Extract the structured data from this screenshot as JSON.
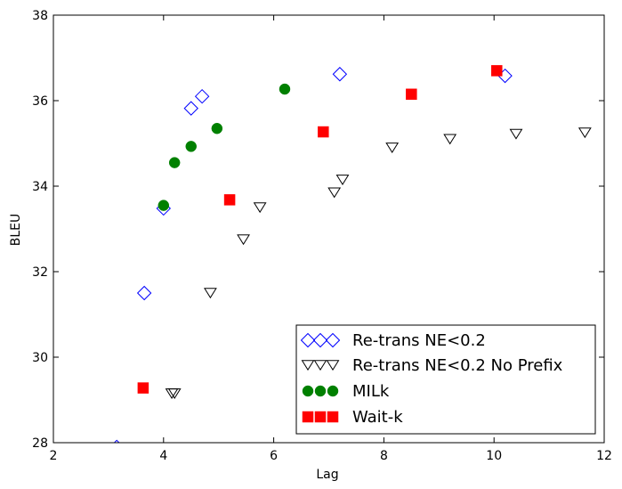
{
  "chart_data": {
    "type": "scatter",
    "xlabel": "Lag",
    "ylabel": "BLEU",
    "xlim": [
      2,
      12
    ],
    "ylim": [
      28,
      38
    ],
    "xticks": [
      2,
      4,
      6,
      8,
      10,
      12
    ],
    "yticks": [
      28,
      30,
      32,
      34,
      36,
      38
    ],
    "grid": false,
    "legend_position": "bottom-right",
    "series": [
      {
        "name": "Re-trans NE<0.2",
        "marker": "diamond-open",
        "color": "#0000ff",
        "points": [
          [
            3.15,
            27.9
          ],
          [
            3.65,
            31.5
          ],
          [
            4.0,
            33.48
          ],
          [
            4.5,
            35.82
          ],
          [
            4.7,
            36.1
          ],
          [
            7.2,
            36.62
          ],
          [
            10.2,
            36.58
          ]
        ]
      },
      {
        "name": "Re-trans NE<0.2 No Prefix",
        "marker": "triangle-down-open",
        "color": "#000000",
        "points": [
          [
            4.15,
            29.15
          ],
          [
            4.2,
            29.15
          ],
          [
            4.85,
            31.5
          ],
          [
            5.45,
            32.75
          ],
          [
            5.75,
            33.5
          ],
          [
            7.1,
            33.85
          ],
          [
            7.25,
            34.15
          ],
          [
            8.15,
            34.9
          ],
          [
            9.2,
            35.1
          ],
          [
            10.4,
            35.22
          ],
          [
            11.65,
            35.25
          ]
        ]
      },
      {
        "name": "MILk",
        "marker": "circle",
        "color": "#008000",
        "points": [
          [
            4.0,
            33.55
          ],
          [
            4.2,
            34.55
          ],
          [
            4.5,
            34.93
          ],
          [
            4.97,
            35.35
          ],
          [
            6.2,
            36.27
          ]
        ]
      },
      {
        "name": "Wait-k",
        "marker": "square",
        "color": "#ff0000",
        "points": [
          [
            3.63,
            29.28
          ],
          [
            5.2,
            33.68
          ],
          [
            6.9,
            35.27
          ],
          [
            8.5,
            36.15
          ],
          [
            10.05,
            36.7
          ]
        ]
      }
    ]
  }
}
